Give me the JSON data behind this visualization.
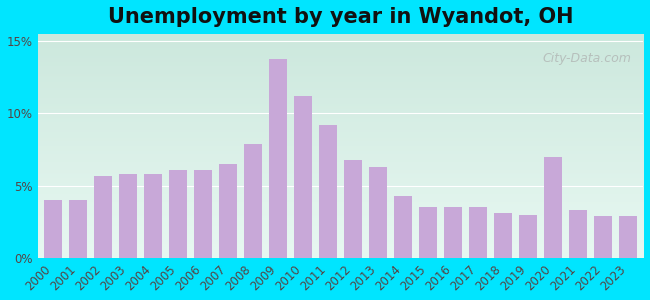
{
  "title": "Unemployment by year in Wyandot, OH",
  "years": [
    2000,
    2001,
    2002,
    2003,
    2004,
    2005,
    2006,
    2007,
    2008,
    2009,
    2010,
    2011,
    2012,
    2013,
    2014,
    2015,
    2016,
    2017,
    2018,
    2019,
    2020,
    2021,
    2022,
    2023
  ],
  "values": [
    4.0,
    4.0,
    5.7,
    5.8,
    5.8,
    6.1,
    6.1,
    6.5,
    7.9,
    13.8,
    11.2,
    9.2,
    6.8,
    6.3,
    4.3,
    3.5,
    3.5,
    3.5,
    3.1,
    3.0,
    7.0,
    3.3,
    2.9,
    2.9
  ],
  "bar_color": "#c8a8d8",
  "yticks": [
    0,
    5,
    10,
    15
  ],
  "ytick_labels": [
    "0%",
    "5%",
    "10%",
    "15%"
  ],
  "ylim": [
    0,
    15.5
  ],
  "bg_outer": "#00e5ff",
  "gradient_top": "#cce8dd",
  "gradient_bottom": "#e8f8f2",
  "watermark": "City-Data.com",
  "title_fontsize": 15,
  "tick_fontsize": 8.5,
  "axis_label_color": "#554444"
}
